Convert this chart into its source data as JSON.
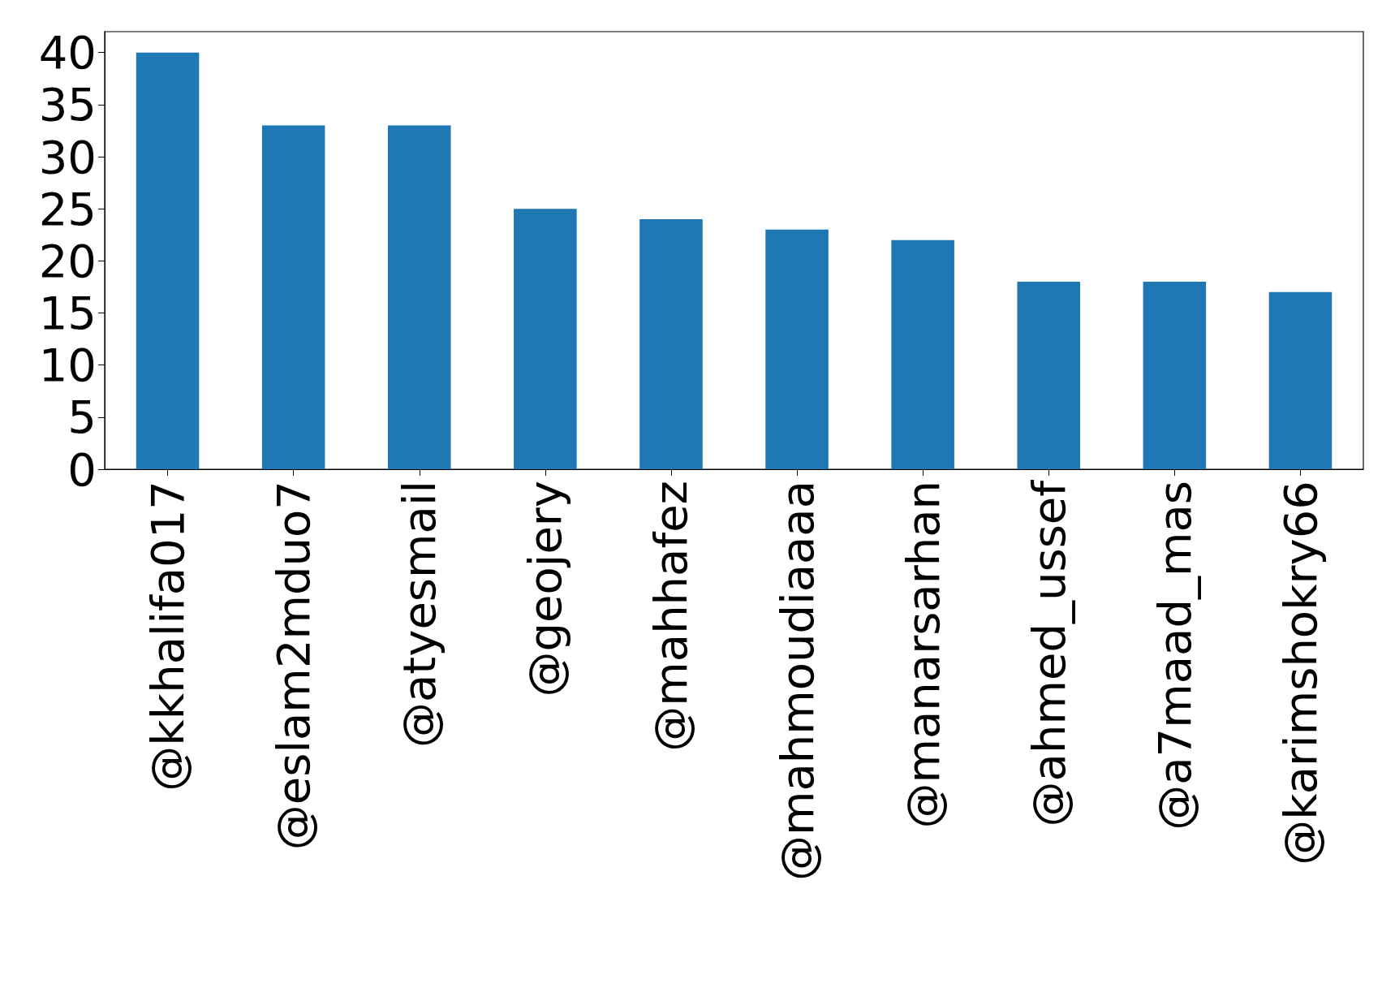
{
  "chart_data": {
    "type": "bar",
    "categories": [
      "@kkhalifa017",
      "@eslam2mduo7",
      "@atyesmail",
      "@geojery",
      "@mahhafez",
      "@mahmoudiaaaa",
      "@manarsarhan",
      "@ahmed_ussef",
      "@a7maad_mas",
      "@karimshokry66"
    ],
    "values": [
      40,
      33,
      33,
      25,
      24,
      23,
      22,
      18,
      18,
      17
    ],
    "color": "#1f77b4",
    "ylim": [
      0,
      42
    ],
    "yticks": [
      0,
      5,
      10,
      15,
      20,
      25,
      30,
      35,
      40
    ],
    "grid": false
  }
}
